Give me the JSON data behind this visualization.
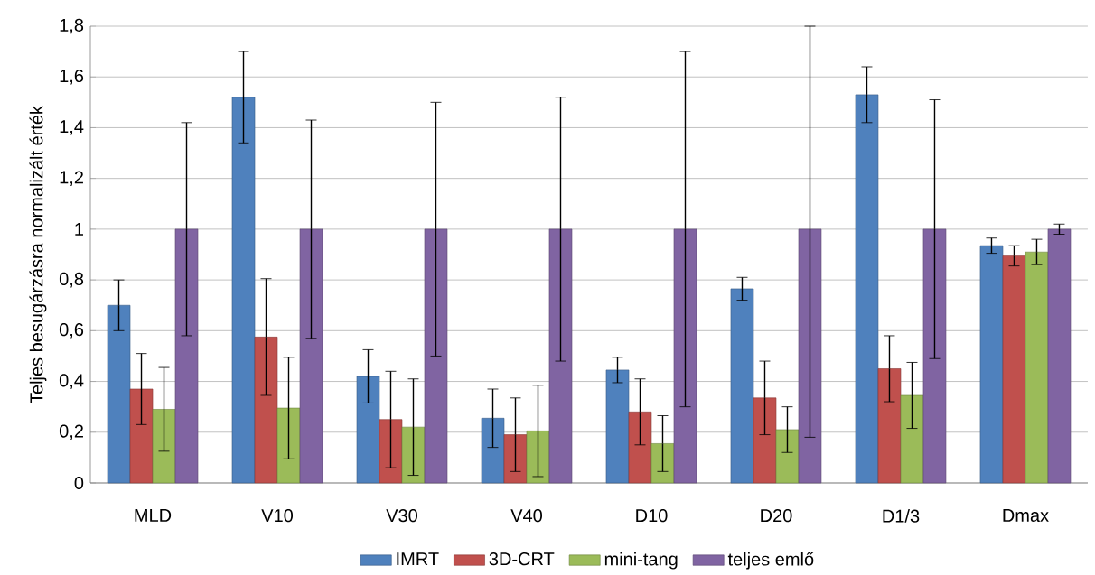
{
  "chart_data": {
    "type": "bar",
    "ylabel": "Teljes besugárzásra normalizált érték",
    "categories": [
      "MLD",
      "V10",
      "V30",
      "V40",
      "D10",
      "D20",
      "D1/3",
      "Dmax"
    ],
    "series": [
      {
        "name": "IMRT",
        "color": "#4f81bd",
        "values": [
          0.7,
          1.52,
          0.42,
          0.255,
          0.445,
          0.765,
          1.53,
          0.935
        ],
        "errors": [
          0.1,
          0.18,
          0.105,
          0.115,
          0.05,
          0.045,
          0.11,
          0.03
        ]
      },
      {
        "name": "3D-CRT",
        "color": "#c0504d",
        "values": [
          0.37,
          0.575,
          0.25,
          0.19,
          0.28,
          0.335,
          0.45,
          0.895
        ],
        "errors": [
          0.14,
          0.23,
          0.19,
          0.145,
          0.13,
          0.145,
          0.13,
          0.04
        ]
      },
      {
        "name": "mini-tang",
        "color": "#9bbb59",
        "values": [
          0.29,
          0.295,
          0.22,
          0.205,
          0.155,
          0.21,
          0.345,
          0.91
        ],
        "errors": [
          0.165,
          0.2,
          0.19,
          0.18,
          0.11,
          0.09,
          0.13,
          0.05
        ]
      },
      {
        "name": "teljes emlő",
        "color": "#8064a2",
        "values": [
          1.0,
          1.0,
          1.0,
          1.0,
          1.0,
          1.0,
          1.0,
          1.0
        ],
        "errors": [
          0.42,
          0.43,
          0.5,
          0.52,
          0.7,
          [
            0.18,
            1.8
          ],
          0.51,
          0.02
        ]
      }
    ],
    "ylim": [
      0,
      1.8
    ],
    "yticks": [
      0,
      {
        "value": 0.2,
        "label": "0,2"
      },
      {
        "value": 0.4,
        "label": "0,4"
      },
      {
        "value": 0.6,
        "label": "0,6"
      },
      {
        "value": 0.8,
        "label": "0,8"
      },
      1,
      {
        "value": 1.2,
        "label": "1,2"
      },
      {
        "value": 1.4,
        "label": "1,4"
      },
      {
        "value": 1.6,
        "label": "1,6"
      },
      {
        "value": 1.8,
        "label": "1,8"
      }
    ],
    "grid": "y",
    "legend": "bottom"
  }
}
